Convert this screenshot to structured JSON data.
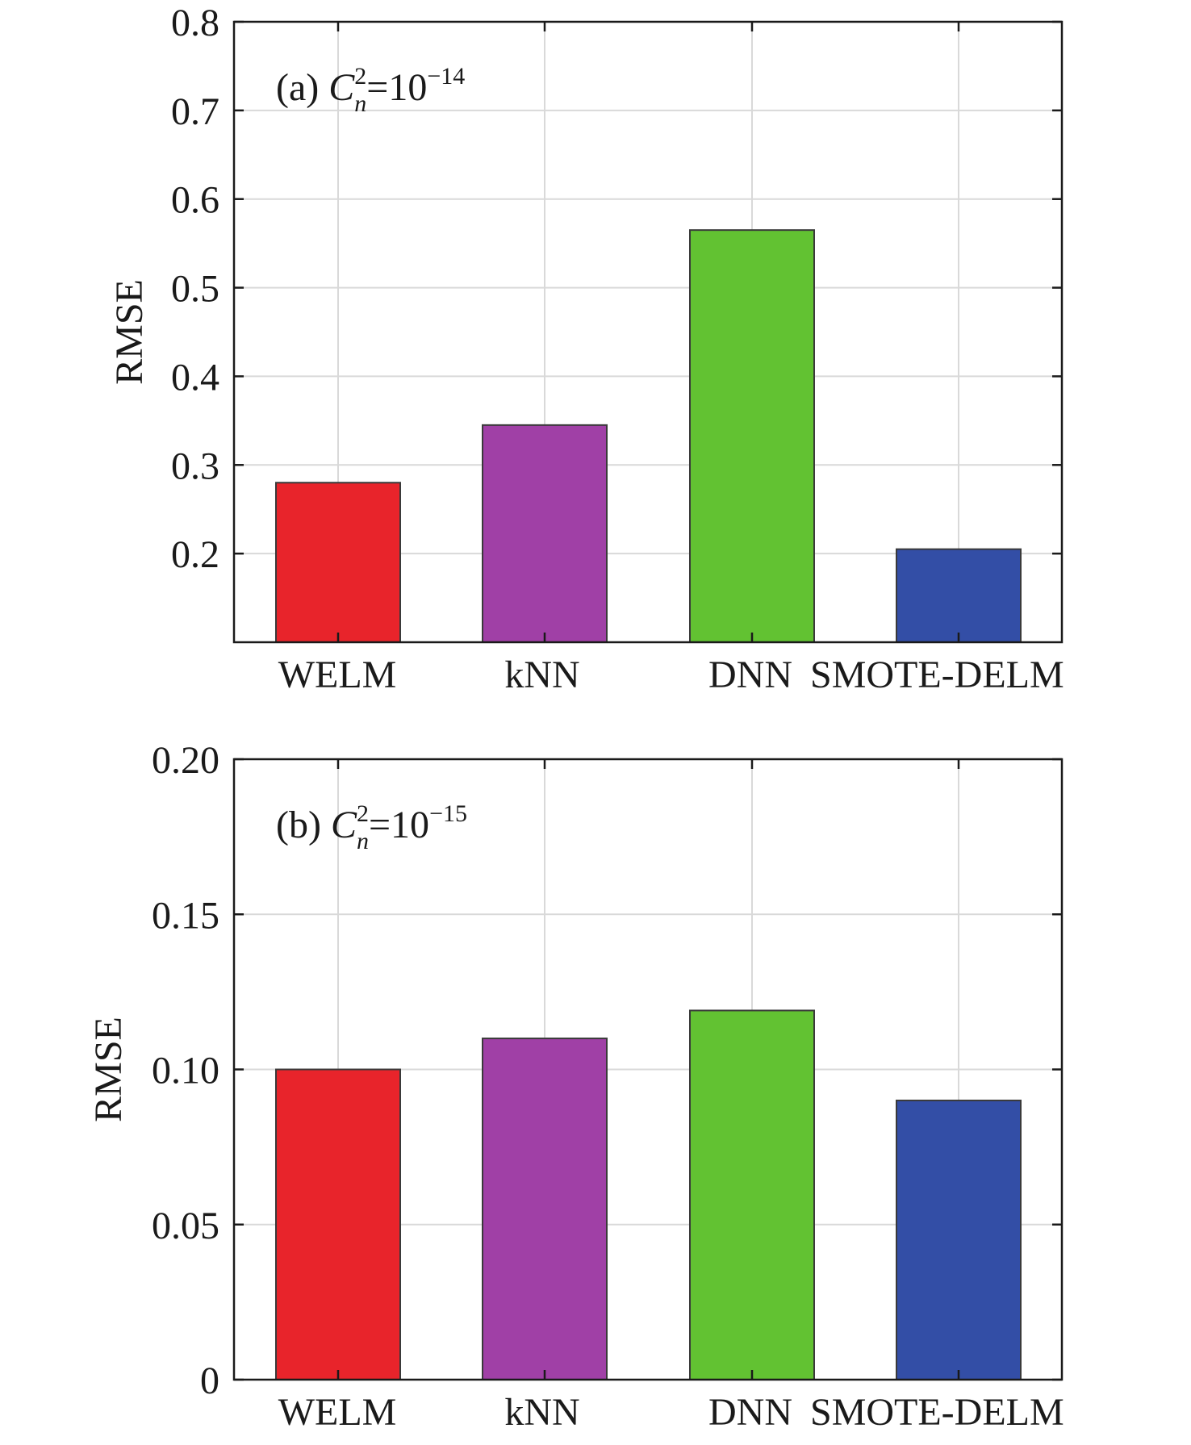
{
  "colors": {
    "WELM": "#e8242b",
    "kNN": "#a040a6",
    "DNN": "#62c232",
    "SMOTE-DELM": "#334ea6",
    "grid": "#d9d9d9",
    "axis": "#1a1a1a"
  },
  "chart_data": [
    {
      "type": "bar",
      "panel_label": "(a)",
      "annotation": {
        "symbol": "C",
        "superscript": "2",
        "subscript": "n",
        "equals": "=10",
        "exponent": "−14"
      },
      "categories": [
        "WELM",
        "kNN",
        "DNN",
        "SMOTE-DELM"
      ],
      "values": [
        0.28,
        0.345,
        0.565,
        0.205
      ],
      "ylabel": "RMSE",
      "xlabel": "",
      "ylim": [
        0.1,
        0.8
      ],
      "yticks": [
        "0.2",
        "0.3",
        "0.4",
        "0.5",
        "0.6",
        "0.7",
        "0.8"
      ],
      "grid": true
    },
    {
      "type": "bar",
      "panel_label": "(b)",
      "annotation": {
        "symbol": "C",
        "superscript": "2",
        "subscript": "n",
        "equals": "=10",
        "exponent": "−15"
      },
      "categories": [
        "WELM",
        "kNN",
        "DNN",
        "SMOTE-DELM"
      ],
      "values": [
        0.1,
        0.11,
        0.119,
        0.09
      ],
      "ylabel": "RMSE",
      "xlabel": "",
      "ylim": [
        0,
        0.2
      ],
      "yticks": [
        "0",
        "0.05",
        "0.10",
        "0.15",
        "0.20"
      ],
      "grid": true
    }
  ]
}
